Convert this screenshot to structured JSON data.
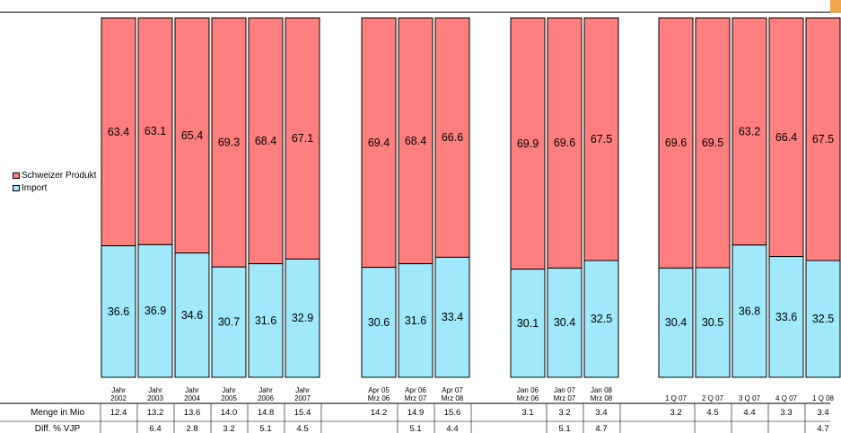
{
  "colors": {
    "schweizer": "#ff7f7f",
    "import": "#a0e8fb",
    "accent": "#f2a64a"
  },
  "chart_data": {
    "type": "bar",
    "stacked": true,
    "percent_stacked": true,
    "legend_position": "left",
    "grid": false,
    "groups": [
      {
        "categories": [
          [
            "Jahr",
            "2002"
          ],
          [
            "Jahr",
            "2003"
          ],
          [
            "Jahr",
            "2004"
          ],
          [
            "Jahr",
            "2005"
          ],
          [
            "Jahr",
            "2006"
          ],
          [
            "Jahr",
            "2007"
          ]
        ]
      },
      {
        "categories": [
          [
            "Apr 05",
            "Mrz 06"
          ],
          [
            "Apr 06",
            "Mrz 07"
          ],
          [
            "Apr 07",
            "Mrz 08"
          ]
        ]
      },
      {
        "categories": [
          [
            "Jan 06",
            "Mrz 06"
          ],
          [
            "Jan 07",
            "Mrz 07"
          ],
          [
            "Jan 08",
            "Mrz 08"
          ]
        ]
      },
      {
        "categories": [
          [
            "1 Q 07"
          ],
          [
            "2 Q 07"
          ],
          [
            "3 Q 07"
          ],
          [
            "4 Q 07"
          ],
          [
            "1 Q 08"
          ]
        ]
      }
    ],
    "series": [
      {
        "name": "Import",
        "values": [
          36.6,
          36.9,
          34.6,
          30.7,
          31.6,
          32.9,
          30.6,
          31.6,
          33.4,
          30.1,
          30.4,
          32.5,
          30.4,
          30.5,
          36.8,
          33.6,
          32.5
        ]
      },
      {
        "name": "Schweizer Produkt",
        "values": [
          63.4,
          63.1,
          65.4,
          69.3,
          68.4,
          67.1,
          69.4,
          68.4,
          66.6,
          69.9,
          69.6,
          67.5,
          69.6,
          69.5,
          63.2,
          66.4,
          67.5
        ]
      }
    ],
    "ylim": [
      0,
      100
    ],
    "table": {
      "row_labels": [
        "Menge in Mio",
        "Diff. % VJP"
      ],
      "menge": [
        "12.4",
        "13.2",
        "13.6",
        "14.0",
        "14.8",
        "15.4",
        "14.2",
        "14.9",
        "15.6",
        "3.1",
        "3.2",
        "3.4",
        "3.2",
        "4.5",
        "4.4",
        "3.3",
        "3.4"
      ],
      "diff": [
        "",
        "6.4",
        "2.8",
        "3.2",
        "5.1",
        "4.5",
        "",
        "5.1",
        "4.4",
        "",
        "5.1",
        "4.7",
        "",
        "",
        "",
        "",
        "4.7"
      ]
    }
  }
}
